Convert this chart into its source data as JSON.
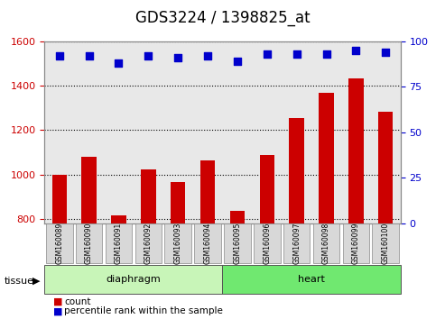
{
  "title": "GDS3224 / 1398825_at",
  "samples": [
    "GSM160089",
    "GSM160090",
    "GSM160091",
    "GSM160092",
    "GSM160093",
    "GSM160094",
    "GSM160095",
    "GSM160096",
    "GSM160097",
    "GSM160098",
    "GSM160099",
    "GSM160100"
  ],
  "counts": [
    1000,
    1080,
    815,
    1025,
    965,
    1065,
    835,
    1090,
    1255,
    1370,
    1435,
    1285
  ],
  "percentiles": [
    92,
    92,
    88,
    92,
    91,
    92,
    89,
    93,
    93,
    93,
    95,
    94
  ],
  "ylim_left": [
    780,
    1600
  ],
  "ylim_right": [
    0,
    100
  ],
  "yticks_left": [
    800,
    1000,
    1200,
    1400,
    1600
  ],
  "yticks_right": [
    0,
    25,
    50,
    75,
    100
  ],
  "groups": [
    {
      "label": "diaphragm",
      "start": 0,
      "end": 6,
      "color_light": "#c8f0b0",
      "color_dark": "#60e060"
    },
    {
      "label": "heart",
      "start": 6,
      "end": 12,
      "color_light": "#c8f0b0",
      "color_dark": "#60e060"
    }
  ],
  "bar_color": "#cc0000",
  "dot_color": "#0000cc",
  "bar_bottom": 780,
  "dot_scale": 100,
  "title_fontsize": 12,
  "axis_label_color_left": "#cc0000",
  "axis_label_color_right": "#0000cc",
  "grid_color": "#000000",
  "legend_items": [
    {
      "label": "count",
      "color": "#cc0000"
    },
    {
      "label": "percentile rank within the sample",
      "color": "#0000cc"
    }
  ]
}
